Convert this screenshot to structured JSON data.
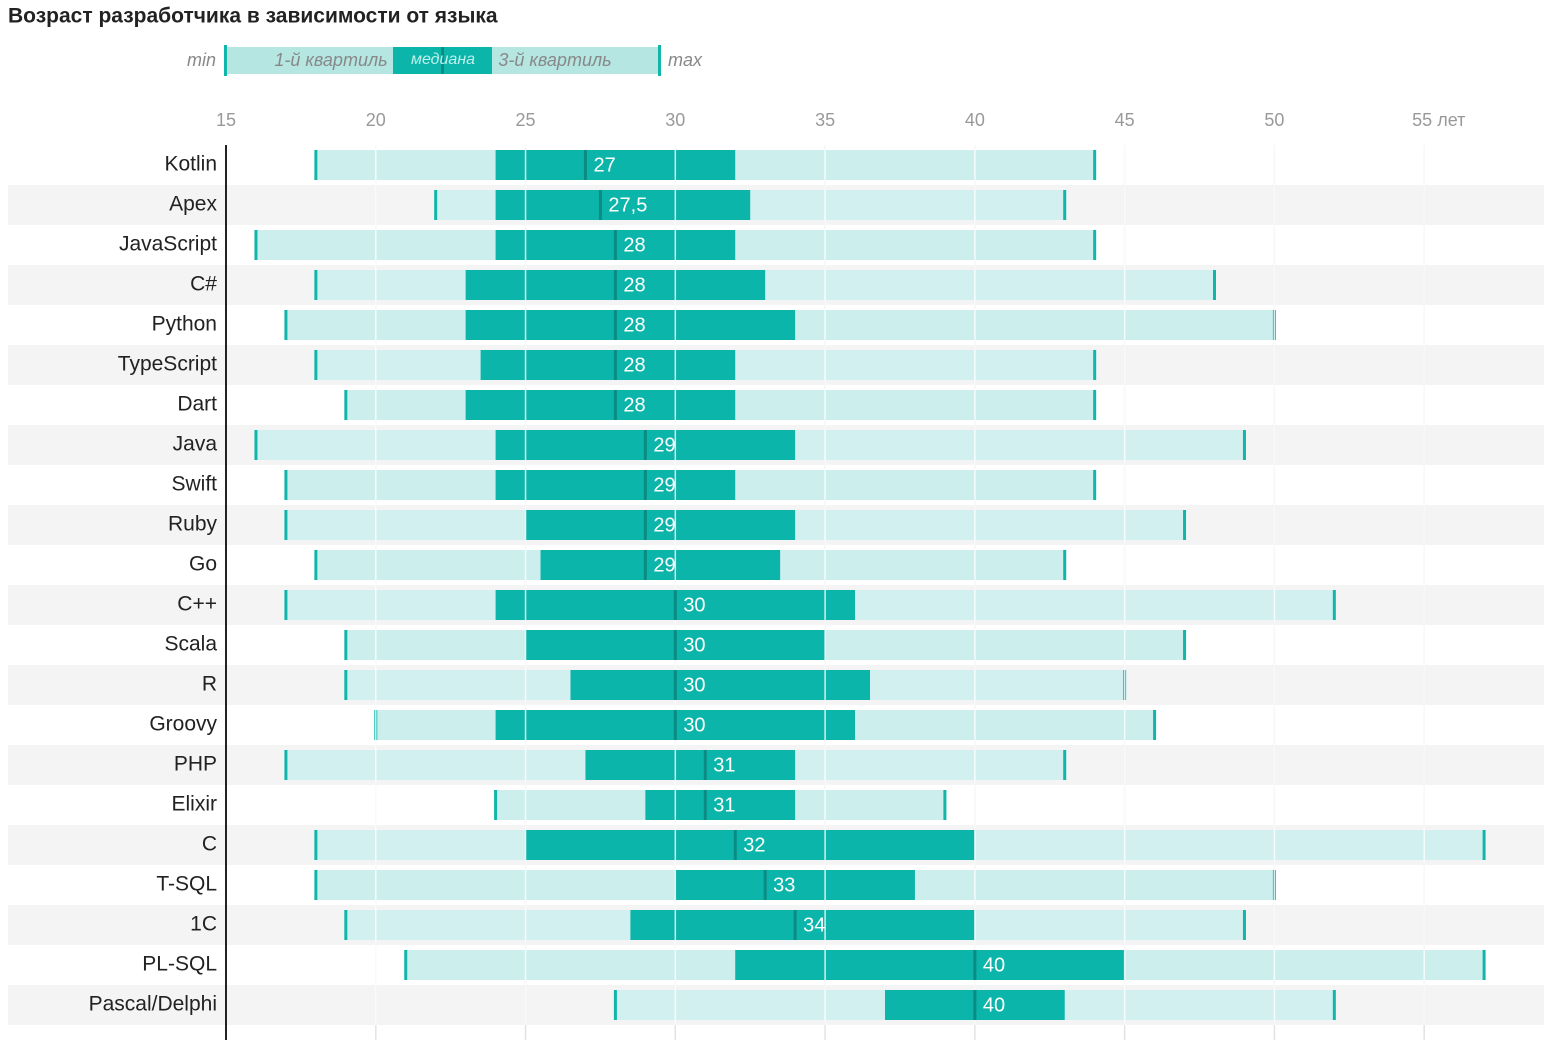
{
  "chart_data": {
    "type": "box",
    "title": "Возраст разработчика в зависимости от языка",
    "legend": {
      "min": "min",
      "q1": "1-й квартиль",
      "median": "медиана",
      "q3": "3-й квартиль",
      "max": "max"
    },
    "categories": [
      "Kotlin",
      "Apex",
      "JavaScript",
      "C#",
      "Python",
      "TypeScript",
      "Dart",
      "Java",
      "Swift",
      "Ruby",
      "Go",
      "C++",
      "Scala",
      "R",
      "Groovy",
      "PHP",
      "Elixir",
      "C",
      "T-SQL",
      "1C",
      "PL-SQL",
      "Pascal/Delphi"
    ],
    "min": [
      18,
      22,
      16,
      18,
      17,
      18,
      19,
      16,
      17,
      17,
      18,
      17,
      19,
      19,
      20,
      17,
      24,
      18,
      18,
      19,
      21,
      28
    ],
    "q1": [
      24,
      24,
      24,
      23,
      23,
      23.5,
      23,
      24,
      24,
      25,
      25.5,
      24,
      25,
      26.5,
      24,
      27,
      29,
      25,
      30,
      28.5,
      32,
      37
    ],
    "median": [
      27,
      27.5,
      28,
      28,
      28,
      28,
      28,
      29,
      29,
      29,
      29,
      30,
      30,
      30,
      30,
      31,
      31,
      32,
      33,
      34,
      40,
      40
    ],
    "value_labels": [
      "27",
      "27,5",
      "28",
      "28",
      "28",
      "28",
      "28",
      "29",
      "29",
      "29",
      "29",
      "30",
      "30",
      "30",
      "30",
      "31",
      "31",
      "32",
      "33",
      "34",
      "40",
      "40"
    ],
    "q3": [
      32,
      32.5,
      32,
      33,
      34,
      32,
      32,
      34,
      32,
      34,
      33.5,
      36,
      35,
      36.5,
      36,
      34,
      34,
      40,
      38,
      40,
      45,
      43
    ],
    "max": [
      44,
      43,
      44,
      48,
      50,
      44,
      44,
      49,
      44,
      47,
      43,
      52,
      47,
      45,
      46,
      43,
      39,
      57,
      50,
      49,
      57,
      52
    ],
    "xlim": [
      15,
      59
    ],
    "xticks": [
      15,
      20,
      25,
      30,
      35,
      40,
      45,
      50,
      {
        "value": 55,
        "label": "55 лет"
      }
    ],
    "grid": true,
    "colors": {
      "range": "#ccefee",
      "iqr": "#0bb5aa",
      "median": "#0a8c84",
      "whisker": "#12b5aa"
    }
  }
}
